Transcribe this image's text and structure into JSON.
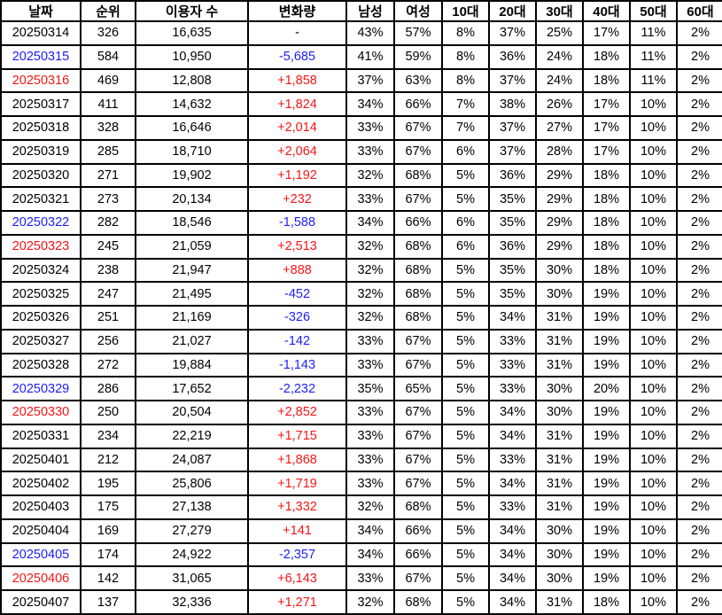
{
  "colors": {
    "black": "#000000",
    "blue": "#1c1cff",
    "red": "#f81414",
    "border": "#000000",
    "background": "#ffffff"
  },
  "chart_data": {
    "type": "table",
    "title": "",
    "columns": [
      "날짜",
      "순위",
      "이용자 수",
      "변화량",
      "남성",
      "여성",
      "10대",
      "20대",
      "30대",
      "40대",
      "50대",
      "60대"
    ],
    "column_keys": [
      "date",
      "rank",
      "users",
      "change",
      "male",
      "female",
      "age10",
      "age20",
      "age30",
      "age40",
      "age50",
      "age60"
    ],
    "rows": [
      {
        "cells": [
          "20250314",
          "326",
          "16,635",
          "-",
          "43%",
          "57%",
          "8%",
          "37%",
          "25%",
          "17%",
          "11%",
          "2%"
        ],
        "date_color": "black",
        "change_color": "black"
      },
      {
        "cells": [
          "20250315",
          "584",
          "10,950",
          "-5,685",
          "41%",
          "59%",
          "8%",
          "36%",
          "24%",
          "18%",
          "11%",
          "2%"
        ],
        "date_color": "blue",
        "change_color": "blue"
      },
      {
        "cells": [
          "20250316",
          "469",
          "12,808",
          "+1,858",
          "37%",
          "63%",
          "8%",
          "37%",
          "24%",
          "18%",
          "11%",
          "2%"
        ],
        "date_color": "red",
        "change_color": "red"
      },
      {
        "cells": [
          "20250317",
          "411",
          "14,632",
          "+1,824",
          "34%",
          "66%",
          "7%",
          "38%",
          "26%",
          "17%",
          "10%",
          "2%"
        ],
        "date_color": "black",
        "change_color": "red"
      },
      {
        "cells": [
          "20250318",
          "328",
          "16,646",
          "+2,014",
          "33%",
          "67%",
          "7%",
          "37%",
          "27%",
          "17%",
          "10%",
          "2%"
        ],
        "date_color": "black",
        "change_color": "red"
      },
      {
        "cells": [
          "20250319",
          "285",
          "18,710",
          "+2,064",
          "33%",
          "67%",
          "6%",
          "37%",
          "28%",
          "17%",
          "10%",
          "2%"
        ],
        "date_color": "black",
        "change_color": "red"
      },
      {
        "cells": [
          "20250320",
          "271",
          "19,902",
          "+1,192",
          "32%",
          "68%",
          "5%",
          "36%",
          "29%",
          "18%",
          "10%",
          "2%"
        ],
        "date_color": "black",
        "change_color": "red"
      },
      {
        "cells": [
          "20250321",
          "273",
          "20,134",
          "+232",
          "33%",
          "67%",
          "5%",
          "35%",
          "29%",
          "18%",
          "10%",
          "2%"
        ],
        "date_color": "black",
        "change_color": "red"
      },
      {
        "cells": [
          "20250322",
          "282",
          "18,546",
          "-1,588",
          "34%",
          "66%",
          "6%",
          "35%",
          "29%",
          "18%",
          "10%",
          "2%"
        ],
        "date_color": "blue",
        "change_color": "blue"
      },
      {
        "cells": [
          "20250323",
          "245",
          "21,059",
          "+2,513",
          "32%",
          "68%",
          "6%",
          "36%",
          "29%",
          "18%",
          "10%",
          "2%"
        ],
        "date_color": "red",
        "change_color": "red"
      },
      {
        "cells": [
          "20250324",
          "238",
          "21,947",
          "+888",
          "32%",
          "68%",
          "5%",
          "35%",
          "30%",
          "18%",
          "10%",
          "2%"
        ],
        "date_color": "black",
        "change_color": "red"
      },
      {
        "cells": [
          "20250325",
          "247",
          "21,495",
          "-452",
          "32%",
          "68%",
          "5%",
          "35%",
          "30%",
          "19%",
          "10%",
          "2%"
        ],
        "date_color": "black",
        "change_color": "blue"
      },
      {
        "cells": [
          "20250326",
          "251",
          "21,169",
          "-326",
          "32%",
          "68%",
          "5%",
          "34%",
          "31%",
          "19%",
          "10%",
          "2%"
        ],
        "date_color": "black",
        "change_color": "blue"
      },
      {
        "cells": [
          "20250327",
          "256",
          "21,027",
          "-142",
          "33%",
          "67%",
          "5%",
          "33%",
          "31%",
          "19%",
          "10%",
          "2%"
        ],
        "date_color": "black",
        "change_color": "blue"
      },
      {
        "cells": [
          "20250328",
          "272",
          "19,884",
          "-1,143",
          "33%",
          "67%",
          "5%",
          "33%",
          "31%",
          "19%",
          "10%",
          "2%"
        ],
        "date_color": "black",
        "change_color": "blue"
      },
      {
        "cells": [
          "20250329",
          "286",
          "17,652",
          "-2,232",
          "35%",
          "65%",
          "5%",
          "33%",
          "30%",
          "20%",
          "10%",
          "2%"
        ],
        "date_color": "blue",
        "change_color": "blue"
      },
      {
        "cells": [
          "20250330",
          "250",
          "20,504",
          "+2,852",
          "33%",
          "67%",
          "5%",
          "34%",
          "30%",
          "19%",
          "10%",
          "2%"
        ],
        "date_color": "red",
        "change_color": "red"
      },
      {
        "cells": [
          "20250331",
          "234",
          "22,219",
          "+1,715",
          "33%",
          "67%",
          "5%",
          "34%",
          "31%",
          "19%",
          "10%",
          "2%"
        ],
        "date_color": "black",
        "change_color": "red"
      },
      {
        "cells": [
          "20250401",
          "212",
          "24,087",
          "+1,868",
          "33%",
          "67%",
          "5%",
          "33%",
          "31%",
          "19%",
          "10%",
          "2%"
        ],
        "date_color": "black",
        "change_color": "red"
      },
      {
        "cells": [
          "20250402",
          "195",
          "25,806",
          "+1,719",
          "33%",
          "67%",
          "5%",
          "34%",
          "31%",
          "19%",
          "10%",
          "2%"
        ],
        "date_color": "black",
        "change_color": "red"
      },
      {
        "cells": [
          "20250403",
          "175",
          "27,138",
          "+1,332",
          "32%",
          "68%",
          "5%",
          "33%",
          "31%",
          "19%",
          "10%",
          "2%"
        ],
        "date_color": "black",
        "change_color": "red"
      },
      {
        "cells": [
          "20250404",
          "169",
          "27,279",
          "+141",
          "34%",
          "66%",
          "5%",
          "34%",
          "30%",
          "19%",
          "10%",
          "2%"
        ],
        "date_color": "black",
        "change_color": "red"
      },
      {
        "cells": [
          "20250405",
          "174",
          "24,922",
          "-2,357",
          "34%",
          "66%",
          "5%",
          "34%",
          "30%",
          "19%",
          "10%",
          "2%"
        ],
        "date_color": "blue",
        "change_color": "blue"
      },
      {
        "cells": [
          "20250406",
          "142",
          "31,065",
          "+6,143",
          "33%",
          "67%",
          "5%",
          "34%",
          "30%",
          "19%",
          "10%",
          "2%"
        ],
        "date_color": "red",
        "change_color": "red"
      },
      {
        "cells": [
          "20250407",
          "137",
          "32,336",
          "+1,271",
          "32%",
          "68%",
          "5%",
          "34%",
          "31%",
          "18%",
          "10%",
          "2%"
        ],
        "date_color": "black",
        "change_color": "red"
      }
    ]
  }
}
